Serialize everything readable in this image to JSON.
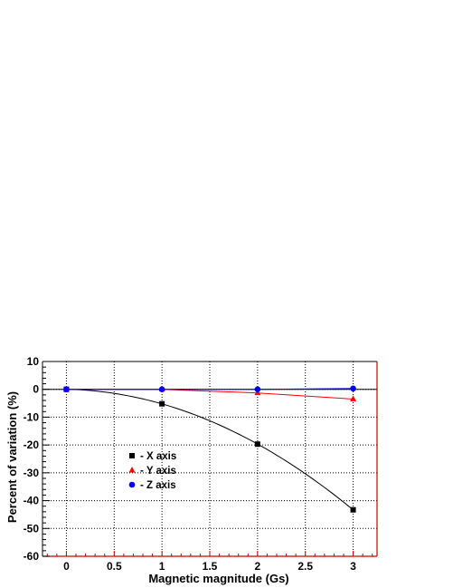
{
  "chart_data": {
    "type": "line",
    "title": "",
    "xlabel": "Magnetic magnitude (Gs)",
    "ylabel": "Percent of variation (%)",
    "xlim": [
      -0.25,
      3.25
    ],
    "ylim": [
      -60,
      10
    ],
    "x_ticks": [
      0,
      0.5,
      1,
      1.5,
      2,
      2.5,
      3
    ],
    "x_tick_labels": [
      "0",
      "0.5",
      "1",
      "1.5",
      "2",
      "2.5",
      "3"
    ],
    "y_ticks": [
      10,
      0,
      -10,
      -20,
      -30,
      -40,
      -50,
      -60
    ],
    "y_tick_labels": [
      "10",
      "0",
      "-10",
      "-20",
      "-30",
      "-40",
      "-50",
      "-60"
    ],
    "grid": true,
    "legend_position": "lower-left",
    "x": [
      0,
      1,
      2,
      3
    ],
    "series": [
      {
        "name": "- X axis",
        "values": [
          0,
          -5.2,
          -19.7,
          -43.3
        ],
        "color": "#000000",
        "marker": "square",
        "smooth": true
      },
      {
        "name": "- Y axis",
        "values": [
          0,
          0,
          -1.3,
          -3.5
        ],
        "color": "#ff0000",
        "marker": "triangle",
        "smooth": false
      },
      {
        "name": "- Z axis",
        "values": [
          0,
          0,
          0,
          0.3
        ],
        "color": "#0000ff",
        "marker": "circle",
        "smooth": false
      }
    ]
  }
}
